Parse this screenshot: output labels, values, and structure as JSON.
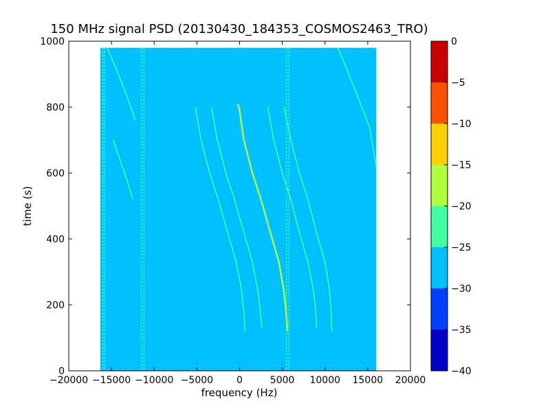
{
  "chart_data": {
    "type": "heatmap",
    "title": "150 MHz signal PSD (20130430_184353_COSMOS2463_TRO)",
    "xlabel": "frequency (Hz)",
    "ylabel": "time (s)",
    "xlim": [
      -20000,
      20000
    ],
    "ylim": [
      0,
      1000
    ],
    "xticks": [
      -20000,
      -15000,
      -10000,
      -5000,
      0,
      5000,
      10000,
      15000,
      20000
    ],
    "yticks": [
      0,
      200,
      400,
      600,
      800,
      1000
    ],
    "data_extent": {
      "x": [
        -16300,
        16000
      ],
      "y": [
        0,
        980
      ]
    },
    "background_level": -27.5,
    "colorbar": {
      "levels": [
        -40,
        -35,
        -30,
        -25,
        -20,
        -15,
        -10,
        -5,
        0
      ],
      "ticks": [
        0,
        -5,
        -10,
        -15,
        -20,
        -25,
        -30,
        -35,
        -40
      ],
      "colors": [
        "#0000c8",
        "#0040ff",
        "#00c0ff",
        "#40ffa0",
        "#b0ff40",
        "#ffd000",
        "#ff5000",
        "#c80000"
      ]
    },
    "vertical_lines": [
      {
        "x": -16000,
        "level": -22.5
      },
      {
        "x": -15800,
        "level": -22.5
      },
      {
        "x": -11500,
        "level": -25
      },
      {
        "x": -11200,
        "level": -25
      },
      {
        "x": 5800,
        "level": -22.5
      },
      {
        "x": 5500,
        "level": -22.5
      }
    ],
    "doppler_traces": [
      {
        "name": "",
        "level": -17.5,
        "points": [
          [
            -200,
            810
          ],
          [
            0,
            790
          ],
          [
            500,
            700
          ],
          [
            1500,
            600
          ],
          [
            2500,
            520
          ],
          [
            3600,
            420
          ],
          [
            4600,
            330
          ],
          [
            5200,
            240
          ],
          [
            5400,
            190
          ],
          [
            5500,
            160
          ],
          [
            5600,
            120
          ]
        ]
      },
      {
        "name": "",
        "level": -22.5,
        "points": [
          [
            -5200,
            800
          ],
          [
            -4500,
            700
          ],
          [
            -3500,
            600
          ],
          [
            -2500,
            520
          ],
          [
            -1400,
            420
          ],
          [
            -400,
            330
          ],
          [
            200,
            250
          ],
          [
            500,
            180
          ],
          [
            600,
            120
          ]
        ]
      },
      {
        "name": "",
        "level": -22.5,
        "points": [
          [
            -3300,
            800
          ],
          [
            -2600,
            700
          ],
          [
            -1600,
            600
          ],
          [
            -600,
            520
          ],
          [
            500,
            420
          ],
          [
            1500,
            330
          ],
          [
            2100,
            250
          ],
          [
            2400,
            190
          ],
          [
            2600,
            130
          ]
        ]
      },
      {
        "name": "",
        "level": -22.5,
        "points": [
          [
            3300,
            800
          ],
          [
            4000,
            700
          ],
          [
            5000,
            600
          ],
          [
            6000,
            520
          ],
          [
            7000,
            420
          ],
          [
            8000,
            330
          ],
          [
            8600,
            250
          ],
          [
            8900,
            190
          ],
          [
            9000,
            130
          ]
        ]
      },
      {
        "name": "",
        "level": -22.5,
        "points": [
          [
            5200,
            800
          ],
          [
            6000,
            700
          ],
          [
            7000,
            600
          ],
          [
            8000,
            520
          ],
          [
            9000,
            420
          ],
          [
            10000,
            330
          ],
          [
            10500,
            250
          ],
          [
            10700,
            190
          ],
          [
            10800,
            120
          ]
        ]
      },
      {
        "name": "",
        "level": -25,
        "points": [
          [
            -15500,
            980
          ],
          [
            -14200,
            900
          ],
          [
            -13000,
            820
          ],
          [
            -12200,
            760
          ]
        ]
      },
      {
        "name": "",
        "level": -25,
        "points": [
          [
            -14800,
            700
          ],
          [
            -14000,
            640
          ],
          [
            -13200,
            580
          ],
          [
            -12500,
            520
          ]
        ]
      },
      {
        "name": "",
        "level": -25,
        "points": [
          [
            11500,
            980
          ],
          [
            12800,
            900
          ],
          [
            14000,
            820
          ],
          [
            15200,
            740
          ],
          [
            16000,
            620
          ]
        ]
      }
    ]
  }
}
